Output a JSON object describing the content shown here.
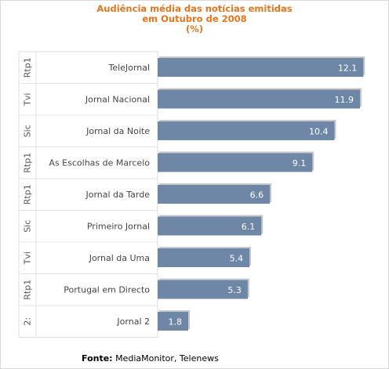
{
  "chart_data": {
    "type": "bar",
    "orientation": "horizontal",
    "title": [
      "Audiência média das notícias emitidas",
      "em Outubro de 2008",
      "(%)"
    ],
    "categories": [
      "TeleJornal",
      "Jornal Nacional",
      "Jornal da Noite",
      "As Escolhas de Marcelo",
      "Jornal da Tarde",
      "Primeiro Jornal",
      "Jornal da Uma",
      "Portugal em Directo",
      "Jornal 2"
    ],
    "channels": [
      "Rtp1",
      "Tvi",
      "Sic",
      "Rtp1",
      "Rtp1",
      "Sic",
      "Tvi",
      "Rtp1",
      "2:"
    ],
    "values": [
      12.1,
      11.9,
      10.4,
      9.1,
      6.6,
      6.1,
      5.4,
      5.3,
      1.8
    ],
    "value_labels": [
      "12.1",
      "11.9",
      "10.4",
      "9.1",
      "6.6",
      "6.1",
      "5.4",
      "5.3",
      "1.8"
    ],
    "xlim": [
      0,
      12.5
    ],
    "bar_color": "#6f87a6",
    "grid": false,
    "legend": "none"
  },
  "footer": {
    "source_label": "Fonte:",
    "source_value": "MediaMonitor, Telenews"
  }
}
